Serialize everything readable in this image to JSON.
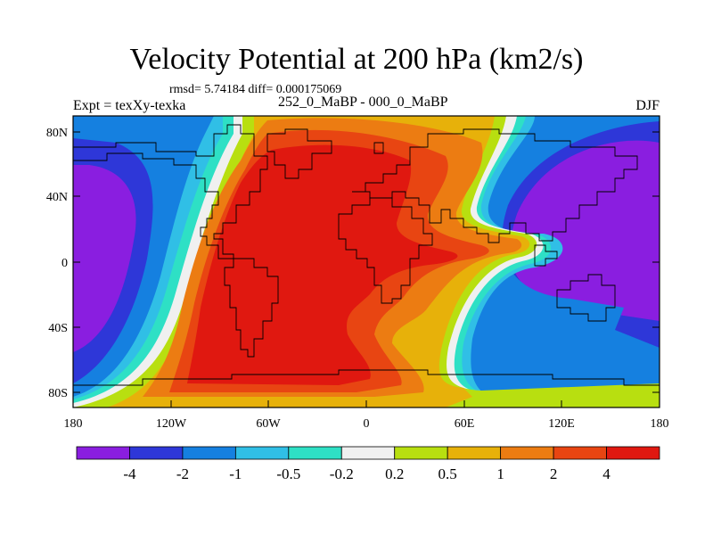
{
  "title": "Velocity Potential at 200 hPa (km2/s)",
  "stats_line": "rmsd= 5.74184 diff= 0.000175069",
  "left_label": "Expt = texXy-texka",
  "center_label": "252_0_MaBP - 000_0_MaBP",
  "right_label": "DJF",
  "lat_labels": [
    "80N",
    "40N",
    "0",
    "40S",
    "80S"
  ],
  "lon_labels": [
    "180",
    "120W",
    "60W",
    "0",
    "60E",
    "120E",
    "180"
  ],
  "colorbar": {
    "labels": [
      "-4",
      "-2",
      "-1",
      "-0.5",
      "-0.2",
      "0.2",
      "0.5",
      "1",
      "2",
      "4"
    ],
    "colors": [
      "#8a1ee0",
      "#2e37d8",
      "#1580e0",
      "#30bfe6",
      "#2ee0c5",
      "#f0f0f0",
      "#b8df10",
      "#e7b10a",
      "#ec7c12",
      "#e84512",
      "#e01810"
    ]
  }
}
